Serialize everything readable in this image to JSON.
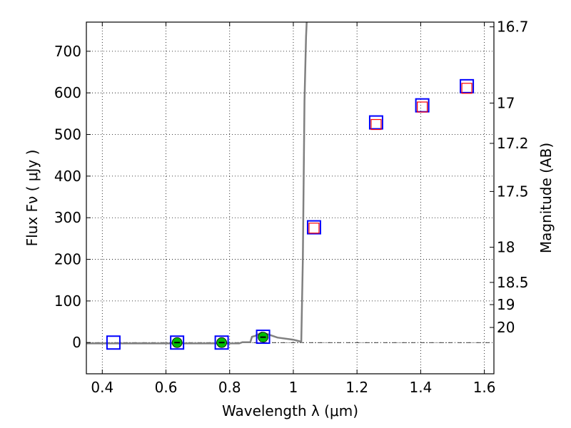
{
  "chart_data": {
    "type": "scatter",
    "xlabel": "Wavelength  λ (μm)",
    "ylabel": "Flux  Fν  ( μJy )",
    "ylabel_right": "Magnitude (AB)",
    "xlim": [
      0.35,
      1.63
    ],
    "ylim": [
      -75,
      770
    ],
    "grid": true,
    "x_ticks": [
      0.4,
      0.6,
      0.8,
      1.0,
      1.2,
      1.4,
      1.6
    ],
    "x_tick_labels": [
      "0.4",
      "0.6",
      "0.8",
      "1",
      "1.2",
      "1.4",
      "1.6"
    ],
    "y_ticks": [
      0,
      100,
      200,
      300,
      400,
      500,
      600,
      700
    ],
    "y_tick_labels": [
      "0",
      "100",
      "200",
      "300",
      "400",
      "500",
      "600",
      "700"
    ],
    "mag_ticks": [
      {
        "label": "16.7",
        "mag": 16.7
      },
      {
        "label": "17",
        "mag": 17.0
      },
      {
        "label": "17.2",
        "mag": 17.2
      },
      {
        "label": "17.5",
        "mag": 17.5
      },
      {
        "label": "18",
        "mag": 18.0
      },
      {
        "label": "18.5",
        "mag": 18.5
      },
      {
        "label": "19",
        "mag": 19.0
      },
      {
        "label": "20",
        "mag": 20.0
      }
    ],
    "series": [
      {
        "marker": "open-square",
        "color": "#0000ff",
        "x": [
          0.435,
          0.635,
          0.775,
          0.905,
          1.065,
          1.26,
          1.405,
          1.545
        ],
        "y": [
          0,
          0,
          0,
          14,
          277,
          529,
          570,
          616
        ]
      },
      {
        "marker": "open-square",
        "color": "#ff0000",
        "x": [
          1.065,
          1.26,
          1.405,
          1.545
        ],
        "y": [
          275,
          524,
          566,
          611
        ]
      },
      {
        "marker": "filled-circle",
        "color": "#00bb00",
        "x": [
          0.635,
          0.775,
          0.905
        ],
        "y": [
          0,
          0,
          13
        ]
      },
      {
        "marker": "line",
        "color": "#808080",
        "x": [
          0.35,
          0.55,
          0.7,
          0.83,
          0.84,
          0.865,
          0.87,
          0.875,
          0.88,
          0.9,
          0.92,
          0.95,
          1.0,
          1.02,
          1.025,
          1.03,
          1.035,
          1.04,
          1.042
        ],
        "y": [
          -2,
          -2,
          -2,
          -2,
          1,
          1,
          14,
          15,
          16,
          24,
          20,
          12,
          7,
          3,
          2,
          200,
          580,
          735,
          770
        ]
      }
    ],
    "colors": {
      "zero_line": "#000000",
      "grid": "#000000"
    }
  }
}
